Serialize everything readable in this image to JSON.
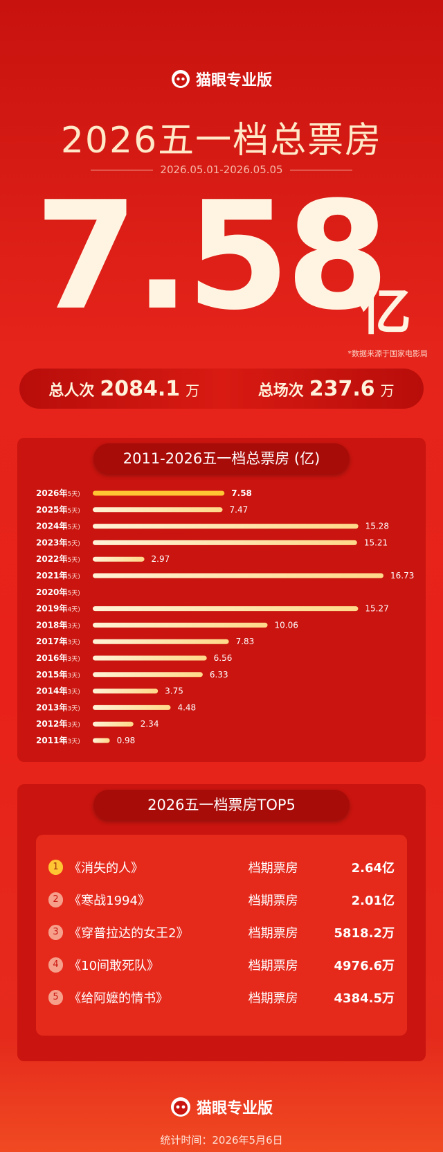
{
  "header": {
    "logo": "猫眼专业版",
    "title": "2026五一档总票房",
    "date_range": "2026.05.01-2026.05.05",
    "total": "7.58",
    "total_unit": "亿",
    "source": "*数据来源于国家电影局"
  },
  "stats": [
    {
      "label": "总人次",
      "value": "2084.1",
      "unit": "万"
    },
    {
      "label": "总场次",
      "value": "237.6",
      "unit": "万"
    }
  ],
  "chart_data": {
    "type": "bar",
    "orientation": "horizontal",
    "title": "2011-2026五一档总票房 (亿)",
    "categories": [
      "2026年",
      "2025年",
      "2024年",
      "2023年",
      "2022年",
      "2021年",
      "2020年",
      "2019年",
      "2018年",
      "2017年",
      "2016年",
      "2015年",
      "2014年",
      "2013年",
      "2012年",
      "2011年"
    ],
    "days": [
      "(5天)",
      "(5天)",
      "(5天)",
      "(5天)",
      "(5天)",
      "(5天)",
      "(5天)",
      "(4天)",
      "(3天)",
      "(3天)",
      "(3天)",
      "(3天)",
      "(3天)",
      "(3天)",
      "(3天)",
      "(3天)"
    ],
    "values": [
      7.58,
      7.47,
      15.28,
      15.21,
      2.97,
      16.73,
      null,
      15.27,
      10.06,
      7.83,
      6.56,
      6.33,
      3.75,
      4.48,
      2.34,
      0.98
    ],
    "color": "#ffd98a",
    "highlight_color": "#ffc533"
  },
  "top5": {
    "title": "2026五一档票房TOP5",
    "rows": [
      {
        "rank": 1,
        "name": "《消失的人》",
        "metric": "档期票房",
        "amount": "2.64亿"
      },
      {
        "rank": 2,
        "name": "《寒战1994》",
        "metric": "档期票房",
        "amount": "2.01亿"
      },
      {
        "rank": 3,
        "name": "《穿普拉达的女王2》",
        "metric": "档期票房",
        "amount": "5818.2万"
      },
      {
        "rank": 4,
        "name": "《10间敢死队》",
        "metric": "档期票房",
        "amount": "4976.6万"
      },
      {
        "rank": 5,
        "name": "《给阿嬷的情书》",
        "metric": "档期票房",
        "amount": "4384.5万"
      }
    ]
  },
  "footer": {
    "logo": "猫眼专业版",
    "time": "统计时间：2026年5月6日"
  }
}
